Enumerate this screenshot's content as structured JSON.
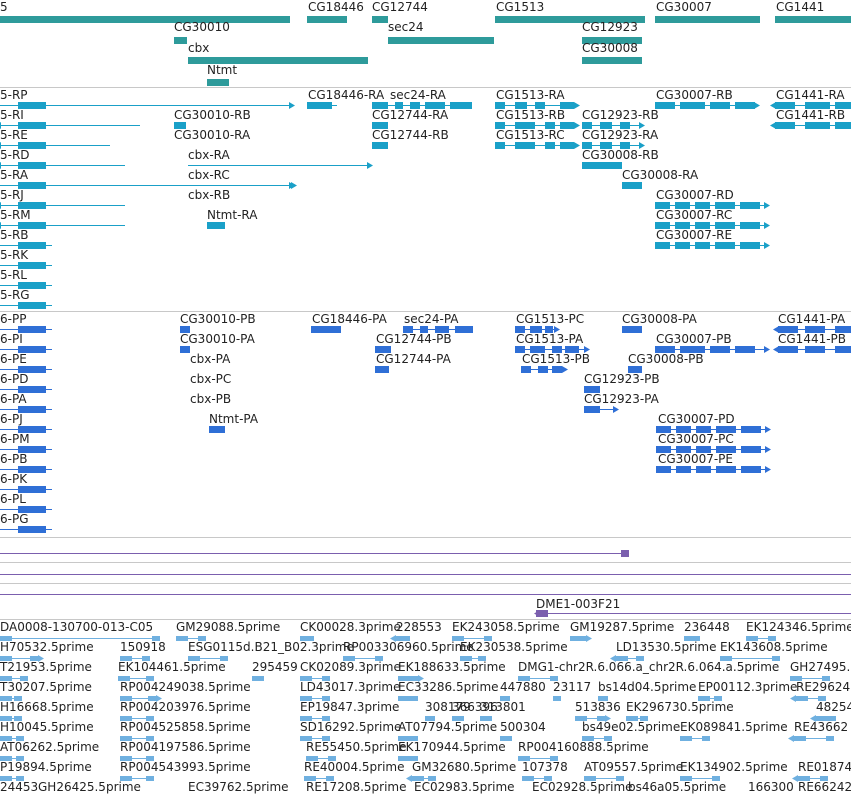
{
  "colors": {
    "gene": "#2e9b9b",
    "transcript": "#1aa0c8",
    "protein": "#2f6fd6",
    "rna": "#7b5fae",
    "est": "#6fb0e0"
  },
  "gene_track": {
    "labels": [
      "5",
      "CG18446",
      "CG12744",
      "CG1513",
      "CG30007",
      "CG1441",
      "CG30010",
      "sec24",
      "CG12923",
      "cbx",
      "CG30008",
      "Ntmt"
    ]
  },
  "transcript_track": {
    "labels": [
      "5-RP",
      "CG18446-RA",
      "sec24-RA",
      "CG1513-RA",
      "CG30007-RB",
      "CG1441-RA",
      "5-RI",
      "CG30010-RB",
      "CG12744-RA",
      "CG1513-RB",
      "CG12923-RB",
      "CG1441-RB",
      "5-RE",
      "CG30010-RA",
      "CG12744-RB",
      "CG1513-RC",
      "CG12923-RA",
      "5-RD",
      "cbx-RA",
      "CG30008-RB",
      "5-RA",
      "cbx-RC",
      "CG30008-RA",
      "5-RJ",
      "cbx-RB",
      "CG30007-RD",
      "5-RM",
      "Ntmt-RA",
      "CG30007-RC",
      "5-RB",
      "CG30007-RE",
      "5-RK",
      "5-RL",
      "5-RG"
    ]
  },
  "protein_track": {
    "labels": [
      "6-PP",
      "CG30010-PB",
      "CG18446-PA",
      "sec24-PA",
      "CG1513-PC",
      "CG30008-PA",
      "CG1441-PA",
      "6-PI",
      "CG30010-PA",
      "CG12744-PB",
      "CG1513-PA",
      "CG30007-PB",
      "CG1441-PB",
      "6-PE",
      "cbx-PA",
      "CG12744-PA",
      "CG1513-PB",
      "CG30008-PB",
      "6-PD",
      "cbx-PC",
      "CG12923-PB",
      "6-PA",
      "cbx-PB",
      "CG12923-PA",
      "6-PJ",
      "Ntmt-PA",
      "CG30007-PD",
      "6-PM",
      "CG30007-PC",
      "6-PB",
      "CG30007-PE",
      "6-PK",
      "6-PL",
      "6-PG"
    ]
  },
  "rna_track": {
    "labels": [
      "DME1-003F21"
    ]
  },
  "est_track": {
    "labels": [
      "DA0008-130700-013-C05",
      "GM29088.5prime",
      "CK00028.3prime",
      "228553",
      "EK243058.5prime",
      "GM19287.5prime",
      "236448",
      "EK124346.5prime",
      "H70532.5prime",
      "150918",
      "ESG0115d.B21_B02.3prime",
      "RP003306960.5prime",
      "EK230538.5prime",
      "LD13530.5prime",
      "EK143608.5prime",
      "T21953.5prime",
      "EK104461.5prime",
      "295459",
      "CK02089.3prime",
      "EK188633.5prime",
      "DMG1-chr2R.6.066.a_chr2R.6.064.a.5prime",
      "GH27495.",
      "T30207.5prime",
      "RP004249038.5prime",
      "LD43017.3prime",
      "EC33286.5prime",
      "447880",
      "23117",
      "bs14d04.5prime",
      "EP00112.3prime",
      "RE29624",
      "H16668.5prime",
      "RP004203976.5prime",
      "EP19847.3prime",
      "308179",
      "366396",
      "313801",
      "513836",
      "EK296730.5prime",
      "48254",
      "H10045.5prime",
      "RP004525858.5prime",
      "SD16292.5prime",
      "AT07794.5prime",
      "500304",
      "bs49e02.5prime",
      "EK089841.5prime",
      "RE43662",
      "AT06262.5prime",
      "RP004197586.5prime",
      "RE55450.5prime",
      "EK170944.5prime",
      "RP004160888.5prime",
      "P19894.5prime",
      "RP004543993.5prime",
      "RE40004.5prime",
      "GM32680.5prime",
      "107378",
      "AT09557.5prime",
      "EK134902.5prime",
      "RE01874",
      "24453",
      "GH26425.5prime",
      "EC39762.5prime",
      "RE17208.5prime",
      "EC02983.5prime",
      "EC02928.5prime",
      "bs46a05.5prime",
      "166300",
      "RE66242"
    ]
  }
}
